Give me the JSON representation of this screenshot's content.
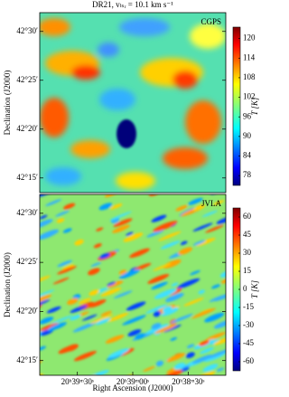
{
  "chart_data": [
    {
      "type": "heatmap",
      "title": "DR21, vₗₛᵣ = 10.1 km s⁻¹",
      "panel_label": "CGPS",
      "ylabel": "Declination (J2000)",
      "colorbar_label": "T [K]",
      "xlim": [
        309.96,
        309.54
      ],
      "ylim": [
        42.225,
        42.532
      ],
      "yticks": [
        {
          "value": 42.5,
          "label": "42°30′"
        },
        {
          "value": 42.41667,
          "label": "42°25′"
        },
        {
          "value": 42.33333,
          "label": "42°20′"
        },
        {
          "value": 42.25,
          "label": "42°15′"
        }
      ],
      "clim": [
        75,
        123.5
      ],
      "cticks": [
        120,
        114,
        108,
        102,
        96,
        90,
        84,
        78
      ],
      "colormap": "jet"
    },
    {
      "type": "heatmap",
      "panel_label": "JVLA",
      "ylabel": "Declination (J2000)",
      "xlabel": "Right Ascension (J2000)",
      "colorbar_label": "T [K]",
      "xlim": [
        309.96,
        309.54
      ],
      "ylim": [
        42.225,
        42.532
      ],
      "xticks": [
        {
          "value": 309.875,
          "label": "20ʰ39ᵐ30ˢ"
        },
        {
          "value": 309.75,
          "label": "20ʰ39ᵐ00ˢ"
        },
        {
          "value": 309.625,
          "label": "20ʰ38ᵐ30ˢ"
        }
      ],
      "yticks": [
        {
          "value": 42.5,
          "label": "42°30′"
        },
        {
          "value": 42.41667,
          "label": "42°25′"
        },
        {
          "value": 42.33333,
          "label": "42°20′"
        },
        {
          "value": 42.25,
          "label": "42°15′"
        }
      ],
      "clim": [
        -67.5,
        67.5
      ],
      "cticks": [
        60,
        45,
        30,
        15,
        0,
        -15,
        -30,
        -45,
        -60
      ],
      "colormap": "jet"
    }
  ]
}
